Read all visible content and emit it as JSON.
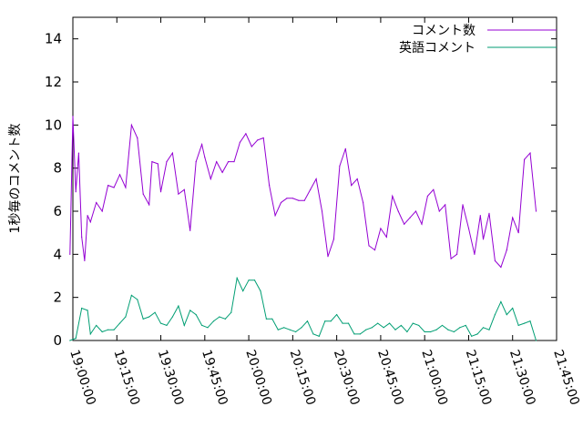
{
  "chart_data": {
    "type": "line",
    "title": "",
    "xlabel": "",
    "ylabel": "1秒毎のコメント数",
    "ylim": [
      0,
      15
    ],
    "yticks": [
      0,
      2,
      4,
      6,
      8,
      10,
      12,
      14
    ],
    "xlim": [
      "19:00:00",
      "21:45:00"
    ],
    "xtick_labels": [
      "19:00:00",
      "19:15:00",
      "19:30:00",
      "19:45:00",
      "20:00:00",
      "20:15:00",
      "20:30:00",
      "20:45:00",
      "21:00:00",
      "21:15:00",
      "21:30:00",
      "21:45:00"
    ],
    "grid": false,
    "legend_position": "top-right",
    "series": [
      {
        "name": "コメント数",
        "color": "#9400d3",
        "x": [
          "18:59:00",
          "19:00:00",
          "19:01:00",
          "19:02:00",
          "19:03:00",
          "19:04:00",
          "19:05:00",
          "19:06:00",
          "19:08:00",
          "19:10:00",
          "19:12:00",
          "19:14:00",
          "19:16:00",
          "19:18:00",
          "19:20:00",
          "19:22:00",
          "19:24:00",
          "19:26:00",
          "19:27:00",
          "19:29:00",
          "19:30:00",
          "19:32:00",
          "19:34:00",
          "19:36:00",
          "19:38:00",
          "19:40:00",
          "19:42:00",
          "19:44:00",
          "19:45:00",
          "19:47:00",
          "19:49:00",
          "19:51:00",
          "19:53:00",
          "19:55:00",
          "19:57:00",
          "19:59:00",
          "20:01:00",
          "20:03:00",
          "20:05:00",
          "20:07:00",
          "20:09:00",
          "20:11:00",
          "20:13:00",
          "20:15:00",
          "20:17:00",
          "20:19:00",
          "20:21:00",
          "20:23:00",
          "20:25:00",
          "20:27:00",
          "20:29:00",
          "20:31:00",
          "20:33:00",
          "20:35:00",
          "20:37:00",
          "20:39:00",
          "20:41:00",
          "20:43:00",
          "20:45:00",
          "20:47:00",
          "20:49:00",
          "20:51:00",
          "20:53:00",
          "20:55:00",
          "20:57:00",
          "20:59:00",
          "21:01:00",
          "21:03:00",
          "21:05:00",
          "21:07:00",
          "21:09:00",
          "21:11:00",
          "21:13:00",
          "21:15:00",
          "21:17:00",
          "21:19:00",
          "21:20:00",
          "21:22:00",
          "21:24:00",
          "21:26:00",
          "21:28:00",
          "21:30:00",
          "21:32:00",
          "21:34:00",
          "21:36:00",
          "21:38:00"
        ],
        "values": [
          4.0,
          10.4,
          6.9,
          8.7,
          4.8,
          3.7,
          5.8,
          5.5,
          6.4,
          6.0,
          7.2,
          7.1,
          7.7,
          7.1,
          10.0,
          9.4,
          6.8,
          6.3,
          8.3,
          8.2,
          6.9,
          8.3,
          8.7,
          6.8,
          7.0,
          5.1,
          8.3,
          9.1,
          8.5,
          7.5,
          8.3,
          7.8,
          8.3,
          8.3,
          9.2,
          9.6,
          9.0,
          9.3,
          9.4,
          7.2,
          5.8,
          6.4,
          6.6,
          6.6,
          6.5,
          6.5,
          7.0,
          7.5,
          6.0,
          3.9,
          4.7,
          8.1,
          8.9,
          7.2,
          7.5,
          6.4,
          4.4,
          4.2,
          5.2,
          4.8,
          6.7,
          6.0,
          5.4,
          5.7,
          6.0,
          5.4,
          6.7,
          7.0,
          6.0,
          6.3,
          3.8,
          4.0,
          6.3,
          5.2,
          4.0,
          5.8,
          4.7,
          5.9,
          3.7,
          3.4,
          4.2,
          5.7,
          5.0,
          8.4,
          8.7,
          6.0
        ]
      },
      {
        "name": "英語コメント",
        "color": "#009e73",
        "x": [
          "18:59:00",
          "19:01:00",
          "19:03:00",
          "19:05:00",
          "19:06:00",
          "19:08:00",
          "19:10:00",
          "19:12:00",
          "19:14:00",
          "19:16:00",
          "19:18:00",
          "19:20:00",
          "19:22:00",
          "19:24:00",
          "19:26:00",
          "19:28:00",
          "19:30:00",
          "19:32:00",
          "19:34:00",
          "19:36:00",
          "19:38:00",
          "19:40:00",
          "19:42:00",
          "19:44:00",
          "19:46:00",
          "19:48:00",
          "19:50:00",
          "19:52:00",
          "19:54:00",
          "19:56:00",
          "19:58:00",
          "20:00:00",
          "20:02:00",
          "20:04:00",
          "20:06:00",
          "20:08:00",
          "20:10:00",
          "20:12:00",
          "20:14:00",
          "20:16:00",
          "20:18:00",
          "20:20:00",
          "20:22:00",
          "20:24:00",
          "20:26:00",
          "20:28:00",
          "20:30:00",
          "20:32:00",
          "20:34:00",
          "20:36:00",
          "20:38:00",
          "20:40:00",
          "20:42:00",
          "20:44:00",
          "20:46:00",
          "20:48:00",
          "20:50:00",
          "20:52:00",
          "20:54:00",
          "20:56:00",
          "20:58:00",
          "21:00:00",
          "21:02:00",
          "21:04:00",
          "21:06:00",
          "21:08:00",
          "21:10:00",
          "21:12:00",
          "21:14:00",
          "21:16:00",
          "21:18:00",
          "21:20:00",
          "21:22:00",
          "21:24:00",
          "21:26:00",
          "21:28:00",
          "21:30:00",
          "21:32:00",
          "21:34:00",
          "21:36:00",
          "21:38:00"
        ],
        "values": [
          0.0,
          0.1,
          1.5,
          1.4,
          0.3,
          0.7,
          0.4,
          0.5,
          0.5,
          0.8,
          1.1,
          2.1,
          1.9,
          1.0,
          1.1,
          1.3,
          0.8,
          0.7,
          1.1,
          1.6,
          0.7,
          1.4,
          1.2,
          0.7,
          0.6,
          0.9,
          1.1,
          1.0,
          1.3,
          2.9,
          2.3,
          2.8,
          2.8,
          2.3,
          1.0,
          1.0,
          0.5,
          0.6,
          0.5,
          0.4,
          0.6,
          0.9,
          0.3,
          0.2,
          0.9,
          0.9,
          1.2,
          0.8,
          0.8,
          0.3,
          0.3,
          0.5,
          0.6,
          0.8,
          0.6,
          0.8,
          0.5,
          0.7,
          0.4,
          0.8,
          0.7,
          0.4,
          0.4,
          0.5,
          0.7,
          0.5,
          0.4,
          0.6,
          0.7,
          0.2,
          0.3,
          0.6,
          0.5,
          1.2,
          1.8,
          1.2,
          1.5,
          0.7,
          0.8,
          0.9,
          0.0
        ]
      }
    ]
  }
}
